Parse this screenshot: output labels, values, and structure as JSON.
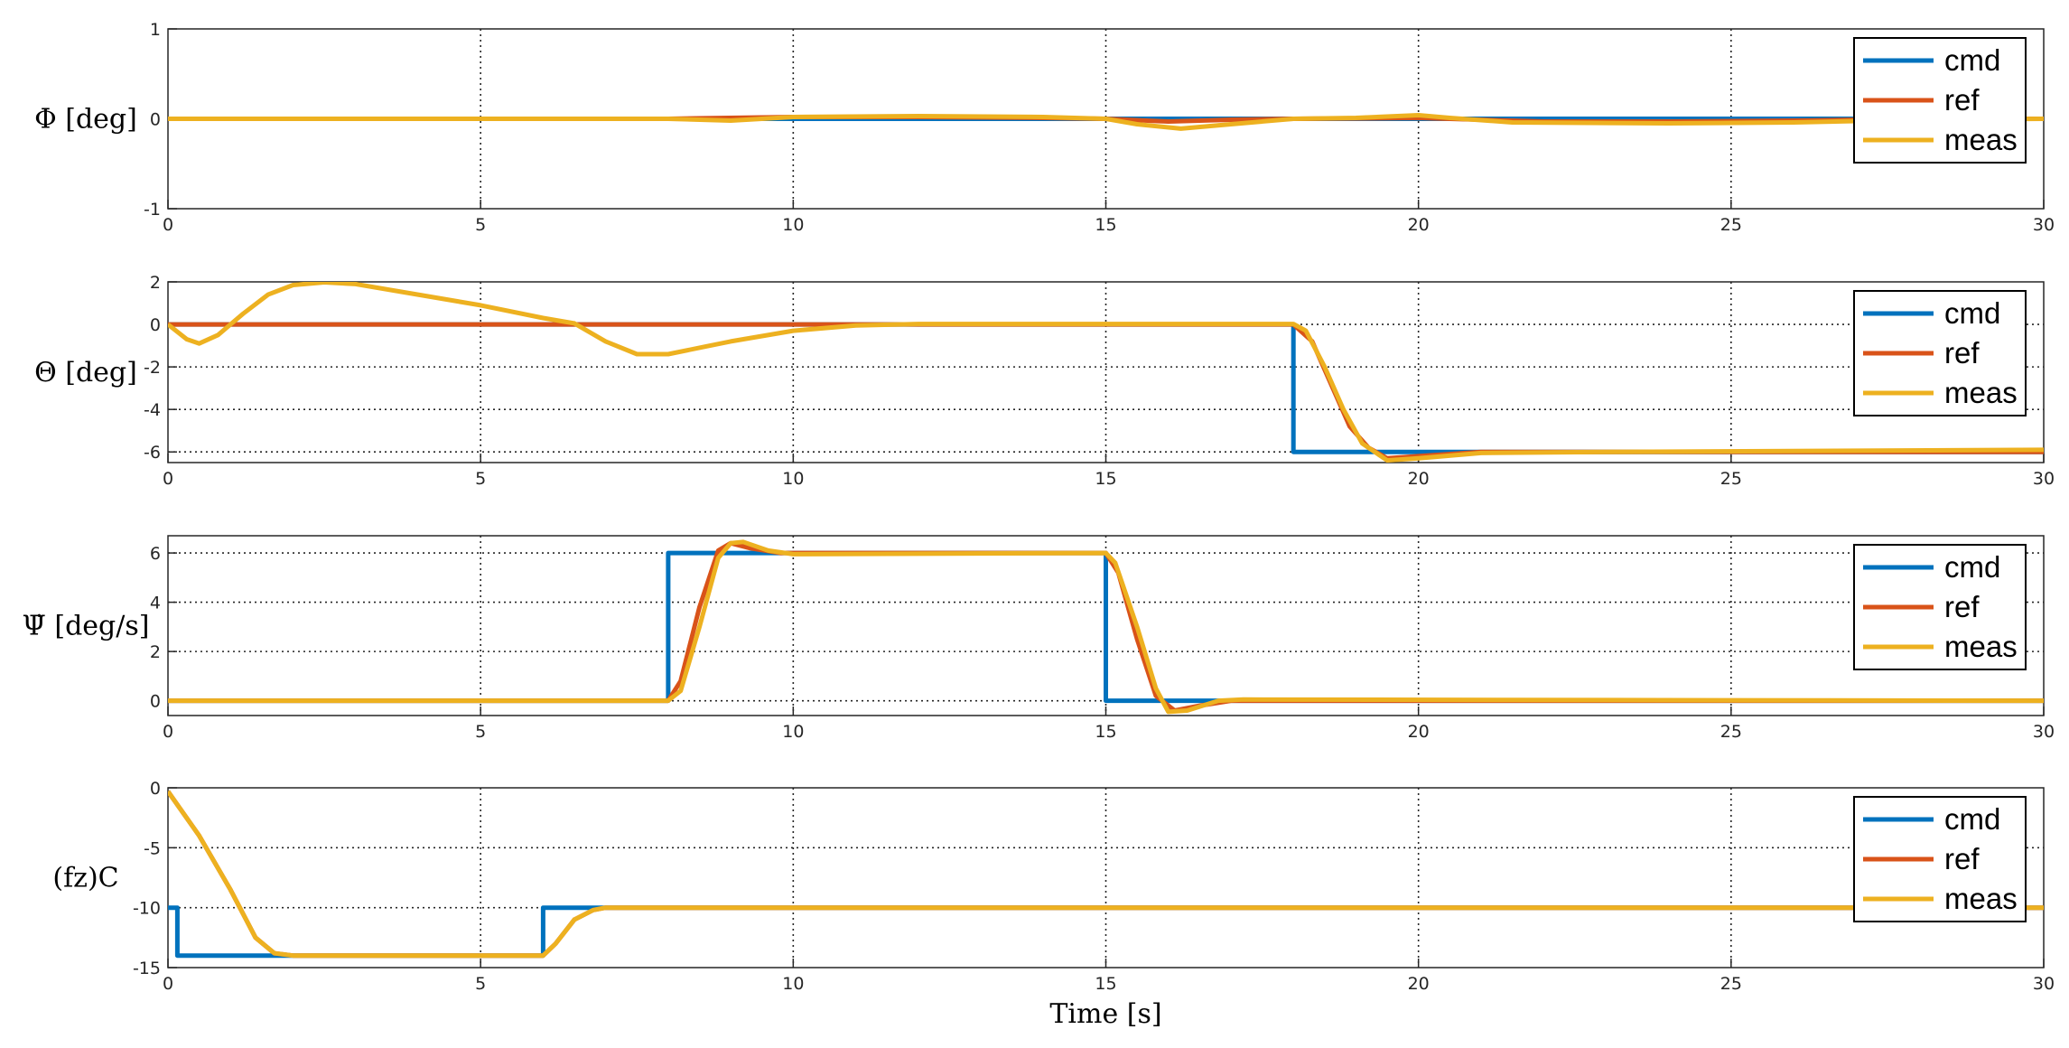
{
  "chart_data": [
    {
      "type": "line",
      "ylabel": "Φ [deg]",
      "xlim": [
        0,
        30
      ],
      "ylim": [
        -1,
        1
      ],
      "xticks": [
        0,
        5,
        10,
        15,
        20,
        25,
        30
      ],
      "yticks": [
        -1,
        0,
        1
      ],
      "legend": {
        "entries": [
          "cmd",
          "ref",
          "meas"
        ],
        "placement": "top-right"
      },
      "series": [
        {
          "name": "cmd",
          "color": "#0072BD",
          "points": [
            [
              0,
              0
            ],
            [
              30,
              0
            ]
          ]
        },
        {
          "name": "ref",
          "color": "#D95319",
          "points": [
            [
              0,
              0
            ],
            [
              8,
              0
            ],
            [
              10,
              0.02
            ],
            [
              12,
              0.02
            ],
            [
              14,
              0.01
            ],
            [
              15,
              0
            ],
            [
              16,
              -0.03
            ],
            [
              17,
              -0.01
            ],
            [
              18,
              0
            ],
            [
              20,
              0.01
            ],
            [
              22,
              -0.03
            ],
            [
              24,
              -0.03
            ],
            [
              26,
              -0.02
            ],
            [
              28,
              0
            ],
            [
              30,
              0
            ]
          ]
        },
        {
          "name": "meas",
          "color": "#EDB120",
          "points": [
            [
              0,
              0
            ],
            [
              8,
              0
            ],
            [
              9,
              -0.02
            ],
            [
              10,
              0.02
            ],
            [
              12,
              0.03
            ],
            [
              14,
              0.02
            ],
            [
              15,
              0
            ],
            [
              15.5,
              -0.06
            ],
            [
              16.2,
              -0.11
            ],
            [
              17,
              -0.06
            ],
            [
              18,
              0
            ],
            [
              19,
              0.01
            ],
            [
              20,
              0.04
            ],
            [
              20.5,
              0.01
            ],
            [
              21.5,
              -0.04
            ],
            [
              24,
              -0.05
            ],
            [
              26,
              -0.04
            ],
            [
              28,
              -0.01
            ],
            [
              30,
              0
            ]
          ]
        }
      ]
    },
    {
      "type": "line",
      "ylabel": "Θ [deg]",
      "xlim": [
        0,
        30
      ],
      "ylim": [
        -6.5,
        2
      ],
      "xticks": [
        0,
        5,
        10,
        15,
        20,
        25,
        30
      ],
      "yticks": [
        -6,
        -4,
        -2,
        0,
        2
      ],
      "legend": {
        "entries": [
          "cmd",
          "ref",
          "meas"
        ],
        "placement": "top-right"
      },
      "series": [
        {
          "name": "cmd",
          "color": "#0072BD",
          "points": [
            [
              0,
              0
            ],
            [
              18,
              0
            ],
            [
              18,
              -6
            ],
            [
              30,
              -6
            ]
          ]
        },
        {
          "name": "ref",
          "color": "#D95319",
          "points": [
            [
              0,
              0
            ],
            [
              18,
              0
            ],
            [
              18.3,
              -0.8
            ],
            [
              18.6,
              -2.8
            ],
            [
              18.9,
              -4.8
            ],
            [
              19.2,
              -5.8
            ],
            [
              19.5,
              -6.3
            ],
            [
              20,
              -6.2
            ],
            [
              21,
              -6.0
            ],
            [
              30,
              -6.0
            ]
          ]
        },
        {
          "name": "meas",
          "color": "#EDB120",
          "points": [
            [
              0,
              0
            ],
            [
              0.3,
              -0.7
            ],
            [
              0.5,
              -0.9
            ],
            [
              0.8,
              -0.5
            ],
            [
              1.2,
              0.5
            ],
            [
              1.6,
              1.4
            ],
            [
              2,
              1.85
            ],
            [
              2.5,
              1.98
            ],
            [
              3,
              1.9
            ],
            [
              4,
              1.4
            ],
            [
              5,
              0.9
            ],
            [
              6,
              0.3
            ],
            [
              6.5,
              0.05
            ],
            [
              7,
              -0.8
            ],
            [
              7.5,
              -1.4
            ],
            [
              8,
              -1.4
            ],
            [
              9,
              -0.8
            ],
            [
              10,
              -0.3
            ],
            [
              11,
              -0.05
            ],
            [
              12,
              0.02
            ],
            [
              17,
              0.02
            ],
            [
              18,
              0.02
            ],
            [
              18.2,
              -0.3
            ],
            [
              18.5,
              -2
            ],
            [
              18.8,
              -4
            ],
            [
              19.1,
              -5.6
            ],
            [
              19.5,
              -6.4
            ],
            [
              20,
              -6.3
            ],
            [
              21,
              -6.05
            ],
            [
              23,
              -6.0
            ],
            [
              30,
              -5.9
            ]
          ]
        }
      ]
    },
    {
      "type": "line",
      "ylabel": "Ψ̇ [deg/s]",
      "xlim": [
        0,
        30
      ],
      "ylim": [
        -0.6,
        6.7
      ],
      "xticks": [
        0,
        5,
        10,
        15,
        20,
        25,
        30
      ],
      "yticks": [
        0,
        2,
        4,
        6
      ],
      "legend": {
        "entries": [
          "cmd",
          "ref",
          "meas"
        ],
        "placement": "top-right"
      },
      "series": [
        {
          "name": "cmd",
          "color": "#0072BD",
          "points": [
            [
              0,
              0
            ],
            [
              8,
              0
            ],
            [
              8,
              6
            ],
            [
              15,
              6
            ],
            [
              15,
              0
            ],
            [
              30,
              0
            ]
          ]
        },
        {
          "name": "ref",
          "color": "#D95319",
          "points": [
            [
              0,
              0
            ],
            [
              8,
              0
            ],
            [
              8.2,
              0.8
            ],
            [
              8.5,
              3.8
            ],
            [
              8.8,
              6.1
            ],
            [
              9,
              6.4
            ],
            [
              9.3,
              6.2
            ],
            [
              9.8,
              6.0
            ],
            [
              15,
              6.0
            ],
            [
              15.2,
              5.2
            ],
            [
              15.5,
              2.5
            ],
            [
              15.8,
              0.2
            ],
            [
              16.1,
              -0.4
            ],
            [
              16.5,
              -0.2
            ],
            [
              17,
              0
            ],
            [
              30,
              0
            ]
          ]
        },
        {
          "name": "meas",
          "color": "#EDB120",
          "points": [
            [
              0,
              0
            ],
            [
              8,
              0
            ],
            [
              8.2,
              0.4
            ],
            [
              8.5,
              3
            ],
            [
              8.8,
              5.8
            ],
            [
              9,
              6.4
            ],
            [
              9.2,
              6.45
            ],
            [
              9.6,
              6.1
            ],
            [
              10,
              5.95
            ],
            [
              15,
              6.0
            ],
            [
              15.15,
              5.6
            ],
            [
              15.5,
              3
            ],
            [
              15.8,
              0.5
            ],
            [
              16,
              -0.45
            ],
            [
              16.3,
              -0.4
            ],
            [
              16.8,
              0
            ],
            [
              17.2,
              0.05
            ],
            [
              30,
              0
            ]
          ]
        }
      ]
    },
    {
      "type": "line",
      "ylabel": "(fz)C",
      "xlabel": "Time [s]",
      "xlim": [
        0,
        30
      ],
      "ylim": [
        -15,
        0
      ],
      "xticks": [
        0,
        5,
        10,
        15,
        20,
        25,
        30
      ],
      "yticks": [
        -15,
        -10,
        -5,
        0
      ],
      "legend": {
        "entries": [
          "cmd",
          "ref",
          "meas"
        ],
        "placement": "top-right"
      },
      "series": [
        {
          "name": "cmd",
          "color": "#0072BD",
          "points": [
            [
              0,
              -10
            ],
            [
              0.15,
              -10
            ],
            [
              0.15,
              -14
            ],
            [
              6,
              -14
            ],
            [
              6,
              -10
            ],
            [
              30,
              -10
            ]
          ]
        },
        {
          "name": "ref",
          "color": "#D95319",
          "points": [
            [
              0,
              -0.3
            ],
            [
              0.5,
              -4
            ],
            [
              1,
              -8.5
            ],
            [
              1.4,
              -12.5
            ],
            [
              1.7,
              -13.8
            ],
            [
              2,
              -14
            ],
            [
              6,
              -14
            ],
            [
              6.2,
              -13
            ],
            [
              6.5,
              -11
            ],
            [
              6.8,
              -10.2
            ],
            [
              7,
              -10
            ],
            [
              30,
              -10
            ]
          ]
        },
        {
          "name": "meas",
          "color": "#EDB120",
          "points": [
            [
              0,
              -0.3
            ],
            [
              0.5,
              -4
            ],
            [
              1,
              -8.5
            ],
            [
              1.4,
              -12.5
            ],
            [
              1.7,
              -13.8
            ],
            [
              2,
              -14
            ],
            [
              6,
              -14
            ],
            [
              6.2,
              -13
            ],
            [
              6.5,
              -11
            ],
            [
              6.8,
              -10.2
            ],
            [
              7,
              -10
            ],
            [
              30,
              -10
            ]
          ]
        }
      ]
    }
  ]
}
